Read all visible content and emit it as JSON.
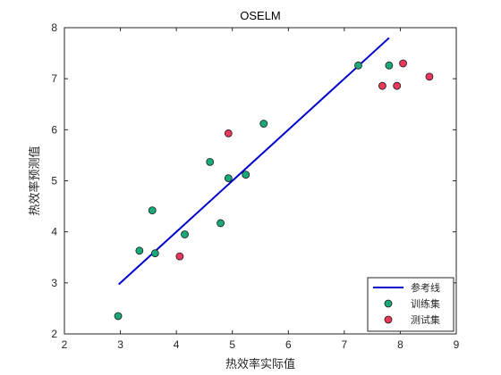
{
  "chart_data": {
    "type": "scatter",
    "title": "OSELM",
    "xlabel": "热效率实际值",
    "ylabel": "热效率预测值",
    "xlim": [
      2,
      9
    ],
    "ylim": [
      2,
      8
    ],
    "xticks": [
      "2",
      "3",
      "4",
      "5",
      "6",
      "7",
      "8",
      "9"
    ],
    "yticks": [
      "2",
      "3",
      "4",
      "5",
      "6",
      "7",
      "8"
    ],
    "grid": false,
    "legend_position": "bottom-right",
    "series": [
      {
        "name": "参考线",
        "kind": "line",
        "color": "#0000cc",
        "points": [
          [
            2.97,
            2.97
          ],
          [
            7.8,
            7.8
          ]
        ]
      },
      {
        "name": "训练集",
        "kind": "scatter",
        "color": "#1aa87a",
        "points": [
          [
            2.96,
            2.35
          ],
          [
            3.34,
            3.63
          ],
          [
            3.57,
            4.42
          ],
          [
            3.62,
            3.58
          ],
          [
            4.15,
            3.95
          ],
          [
            4.6,
            5.37
          ],
          [
            4.79,
            4.17
          ],
          [
            4.93,
            5.05
          ],
          [
            5.24,
            5.12
          ],
          [
            5.56,
            6.12
          ],
          [
            7.25,
            7.26
          ],
          [
            7.8,
            7.26
          ]
        ]
      },
      {
        "name": "测试集",
        "kind": "scatter",
        "color": "#e8385c",
        "points": [
          [
            4.06,
            3.52
          ],
          [
            4.93,
            5.93
          ],
          [
            7.68,
            6.86
          ],
          [
            7.94,
            6.86
          ],
          [
            8.05,
            7.3
          ],
          [
            8.52,
            7.04
          ]
        ]
      }
    ]
  }
}
